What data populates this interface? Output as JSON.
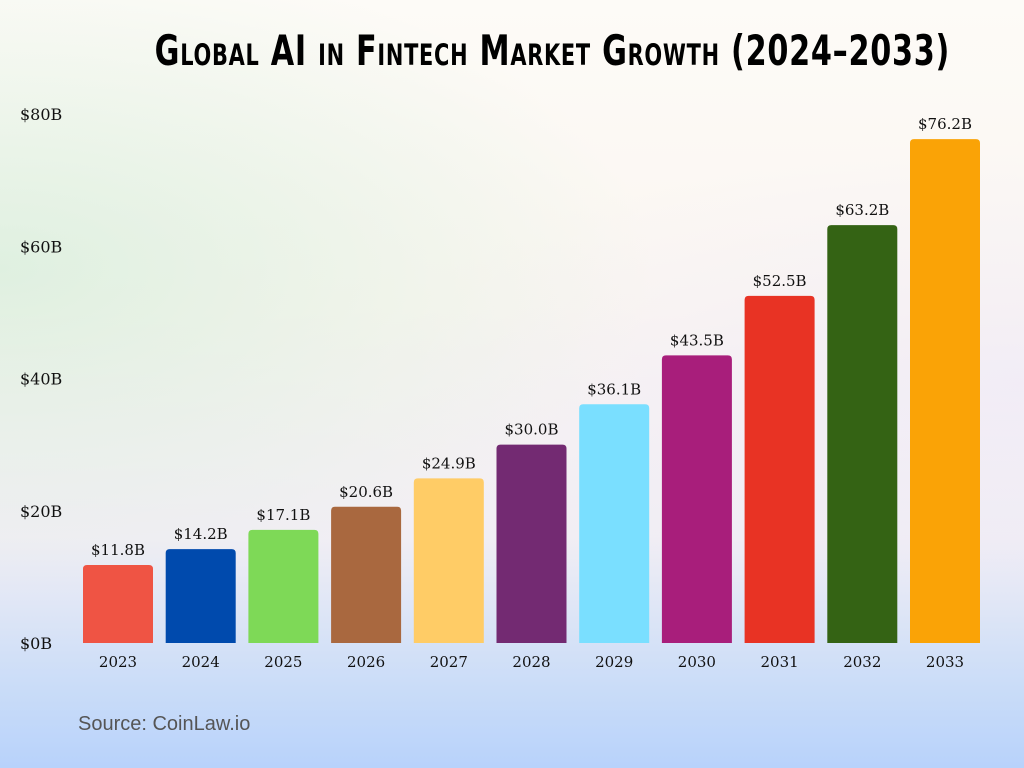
{
  "chart_data": {
    "type": "bar",
    "title": "Global AI in Fintech Market Growth (2024–2033)",
    "xlabel": "",
    "ylabel": "",
    "categories": [
      "2023",
      "2024",
      "2025",
      "2026",
      "2027",
      "2028",
      "2029",
      "2030",
      "2031",
      "2032",
      "2033"
    ],
    "values": [
      11.8,
      14.2,
      17.1,
      20.6,
      24.9,
      30.0,
      36.1,
      43.5,
      52.5,
      63.2,
      76.2
    ],
    "data_labels": [
      "$11.8B",
      "$14.2B",
      "$17.1B",
      "$20.6B",
      "$24.9B",
      "$30.0B",
      "$36.1B",
      "$43.5B",
      "$52.5B",
      "$63.2B",
      "$76.2B"
    ],
    "colors": [
      "#EF5444",
      "#004AAD",
      "#7ED957",
      "#A9683F",
      "#FFCC66",
      "#732A72",
      "#7ADFFF",
      "#A81E7B",
      "#E83324",
      "#346314",
      "#FAA306"
    ],
    "ylim": [
      0,
      80
    ],
    "yticks": [
      0,
      20,
      40,
      60,
      80
    ],
    "ytick_labels": [
      "$0B",
      "$20B",
      "$40B",
      "$60B",
      "$80B"
    ],
    "grid": false,
    "legend": "none"
  },
  "source": "Source: CoinLaw.io"
}
